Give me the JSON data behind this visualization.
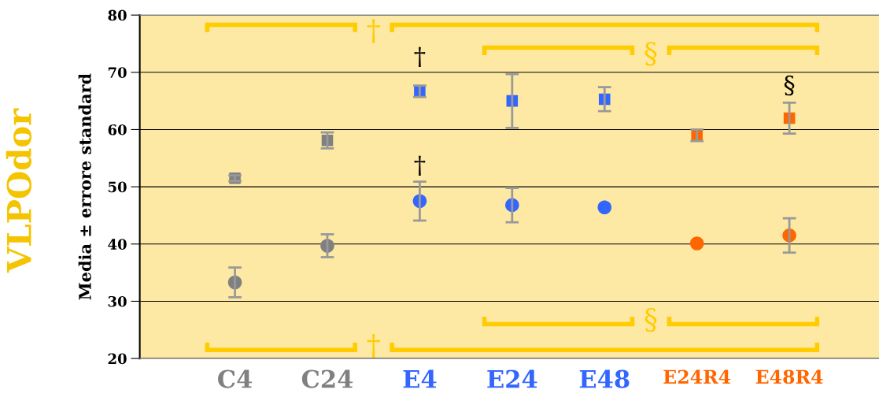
{
  "chart_data": {
    "type": "scatter",
    "title": "VLPOdor",
    "ylabel": "Media ± errore standard",
    "categories": [
      "C4",
      "C24",
      "E4",
      "E24",
      "E48",
      "E24R4",
      "E48R4"
    ],
    "series": [
      {
        "marker": "square",
        "colors": [
          "#808080",
          "#808080",
          "#3366ff",
          "#3366ff",
          "#3366ff",
          "#ff6600",
          "#ff6600"
        ],
        "values": [
          51.5,
          58.1,
          66.7,
          65.0,
          65.3,
          59.0,
          62.0
        ],
        "errors": [
          0.5,
          1.4,
          1.0,
          4.7,
          2.1,
          1.0,
          2.7
        ]
      },
      {
        "marker": "circle",
        "colors": [
          "#808080",
          "#808080",
          "#3366ff",
          "#3366ff",
          "#3366ff",
          "#ff6600",
          "#ff6600"
        ],
        "values": [
          33.3,
          39.7,
          47.5,
          46.8,
          46.4,
          40.1,
          41.5
        ],
        "errors": [
          2.6,
          2.0,
          3.4,
          3.0,
          null,
          null,
          3.0
        ]
      }
    ],
    "ylim": [
      20,
      80
    ],
    "yticks": [
      20,
      30,
      40,
      50,
      60,
      70,
      80
    ],
    "grid": "y",
    "annotations": [
      "†",
      "†",
      "§",
      "†",
      "§",
      "†",
      "§"
    ]
  }
}
